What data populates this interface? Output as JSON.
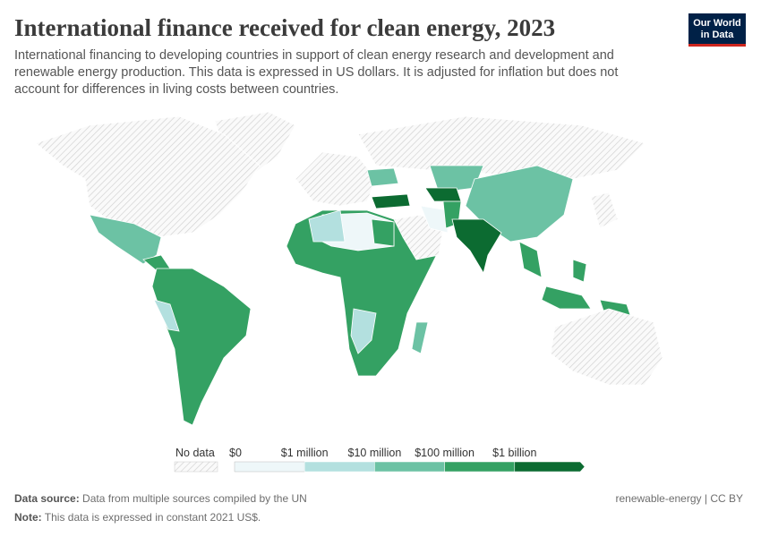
{
  "header": {
    "title": "International finance received for clean energy, 2023",
    "subtitle_lines": [
      "International financing to developing countries in support of clean energy research and development and",
      "renewable energy production. This data is expressed in US dollars. It is adjusted for inflation but does not",
      "account for differences in living costs between countries."
    ]
  },
  "logo": {
    "line1": "Our World",
    "line2": "in Data"
  },
  "legend": {
    "no_data": "No data",
    "labels": [
      "$0",
      "$1 million",
      "$10 million",
      "$100 million",
      "$1 billion"
    ],
    "colors": [
      "#eef7f9",
      "#b3e0df",
      "#6cc2a4",
      "#34a163",
      "#0c6b31"
    ]
  },
  "footer": {
    "source_label": "Data source:",
    "source": "Data from multiple sources compiled by the UN",
    "note_label": "Note:",
    "note": "This data is expressed in constant 2021 US$.",
    "license": "renewable-energy | CC BY"
  }
}
